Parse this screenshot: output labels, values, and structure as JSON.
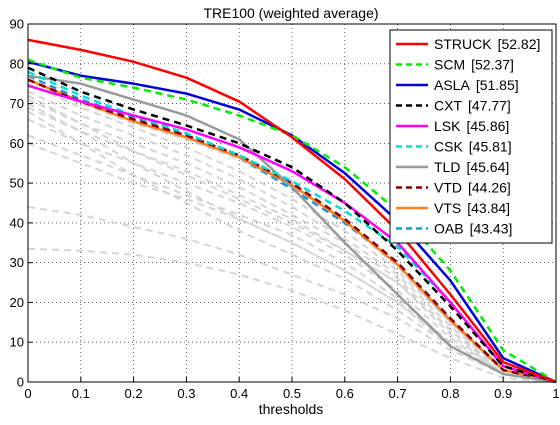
{
  "chart_data": {
    "type": "line",
    "title": "TRE100 (weighted average)",
    "xlabel": "thresholds",
    "ylabel": "",
    "xlim": [
      0,
      1
    ],
    "ylim": [
      0,
      90
    ],
    "xticks": [
      "0",
      "0.1",
      "0.2",
      "0.3",
      "0.4",
      "0.5",
      "0.6",
      "0.7",
      "0.8",
      "0.9",
      "1"
    ],
    "yticks": [
      "0",
      "10",
      "20",
      "30",
      "40",
      "50",
      "60",
      "70",
      "80",
      "90"
    ],
    "grid": true,
    "legend_position": "top-right",
    "x": [
      0,
      0.1,
      0.2,
      0.3,
      0.4,
      0.5,
      0.6,
      0.7,
      0.8,
      0.9,
      1.0
    ],
    "series": [
      {
        "name": "STRUCK",
        "score": "[52.82]",
        "color": "#ff0000",
        "dash": "solid",
        "values": [
          86,
          83.5,
          80.5,
          76.5,
          70.5,
          61.5,
          51,
          38,
          22,
          5,
          0
        ]
      },
      {
        "name": "SCM",
        "score": "[52.37]",
        "color": "#00ee00",
        "dash": "dashed",
        "values": [
          81,
          76.5,
          74,
          71,
          67,
          62,
          54,
          43,
          28,
          8,
          0
        ]
      },
      {
        "name": "ASLA",
        "score": "[51.85]",
        "color": "#0000dd",
        "dash": "solid",
        "values": [
          80.5,
          77,
          75,
          72.5,
          68.5,
          62,
          52.5,
          40.5,
          25.5,
          6,
          0
        ]
      },
      {
        "name": "CXT",
        "score": "[47.77]",
        "color": "#000000",
        "dash": "dashed",
        "values": [
          79,
          73,
          68.5,
          64.5,
          60,
          54,
          45,
          33,
          19,
          4,
          0
        ]
      },
      {
        "name": "LSK",
        "score": "[45.86]",
        "color": "#ff00ff",
        "dash": "solid",
        "values": [
          74.5,
          70.5,
          67,
          63.5,
          59,
          53,
          45,
          35,
          20,
          4,
          0
        ]
      },
      {
        "name": "CSK",
        "score": "[45.81]",
        "color": "#00dddd",
        "dash": "dashed",
        "values": [
          78,
          72,
          67,
          62.5,
          57,
          50.5,
          43,
          34,
          20,
          4,
          0
        ]
      },
      {
        "name": "TLD",
        "score": "[45.64]",
        "color": "#9a9a9a",
        "dash": "solid",
        "values": [
          77,
          75,
          71,
          67,
          61,
          49,
          35,
          22,
          9,
          2,
          0
        ]
      },
      {
        "name": "VTD",
        "score": "[44.26]",
        "color": "#880000",
        "dash": "dashed",
        "values": [
          76,
          70.5,
          66,
          62,
          57,
          50,
          41,
          30,
          16,
          3,
          0
        ]
      },
      {
        "name": "VTS",
        "score": "[43.84]",
        "color": "#ff7f1e",
        "dash": "solid",
        "values": [
          76,
          70.5,
          65.5,
          61.5,
          56.5,
          49.5,
          40.5,
          29.5,
          15.5,
          3,
          0
        ]
      },
      {
        "name": "OAB",
        "score": "[43.43]",
        "color": "#1b98d3",
        "dash": "dashed",
        "values": [
          77,
          71,
          66.5,
          62,
          56.5,
          48.5,
          40,
          30,
          16,
          3,
          0
        ]
      }
    ],
    "background_series": [
      {
        "values": [
          76,
          70,
          65,
          61,
          56,
          49,
          40,
          29,
          15,
          3,
          0
        ]
      },
      {
        "values": [
          75,
          69,
          64,
          59,
          53,
          46,
          38,
          28,
          15,
          3,
          0
        ]
      },
      {
        "values": [
          73,
          67,
          62,
          57,
          51,
          44,
          36,
          27,
          14,
          3,
          0
        ]
      },
      {
        "values": [
          71,
          65,
          60,
          55,
          49,
          42,
          35,
          26,
          13,
          2,
          0
        ]
      },
      {
        "values": [
          69,
          63,
          58,
          53,
          47,
          41,
          33,
          25,
          12,
          2,
          0
        ]
      },
      {
        "values": [
          66,
          60,
          55,
          50,
          45,
          39,
          32,
          23,
          11,
          2,
          0
        ]
      },
      {
        "values": [
          62,
          57,
          52,
          47,
          42,
          37,
          30,
          21,
          10,
          2,
          0
        ]
      },
      {
        "values": [
          60,
          55,
          50,
          46,
          41,
          35,
          28,
          20,
          9,
          2,
          0
        ]
      },
      {
        "values": [
          72,
          65,
          58,
          52,
          46,
          40,
          33,
          25,
          13,
          3,
          0
        ]
      },
      {
        "values": [
          70,
          63,
          55,
          48,
          41,
          35,
          28,
          20,
          10,
          2,
          0
        ]
      },
      {
        "values": [
          68,
          60,
          52,
          45,
          38,
          32,
          26,
          18,
          9,
          2,
          0
        ]
      },
      {
        "values": [
          44,
          42,
          39,
          36,
          32,
          27,
          22,
          16,
          8,
          2,
          0
        ]
      },
      {
        "values": [
          33.5,
          33,
          32,
          30,
          27,
          23,
          18,
          12,
          6,
          1,
          0
        ]
      }
    ]
  }
}
